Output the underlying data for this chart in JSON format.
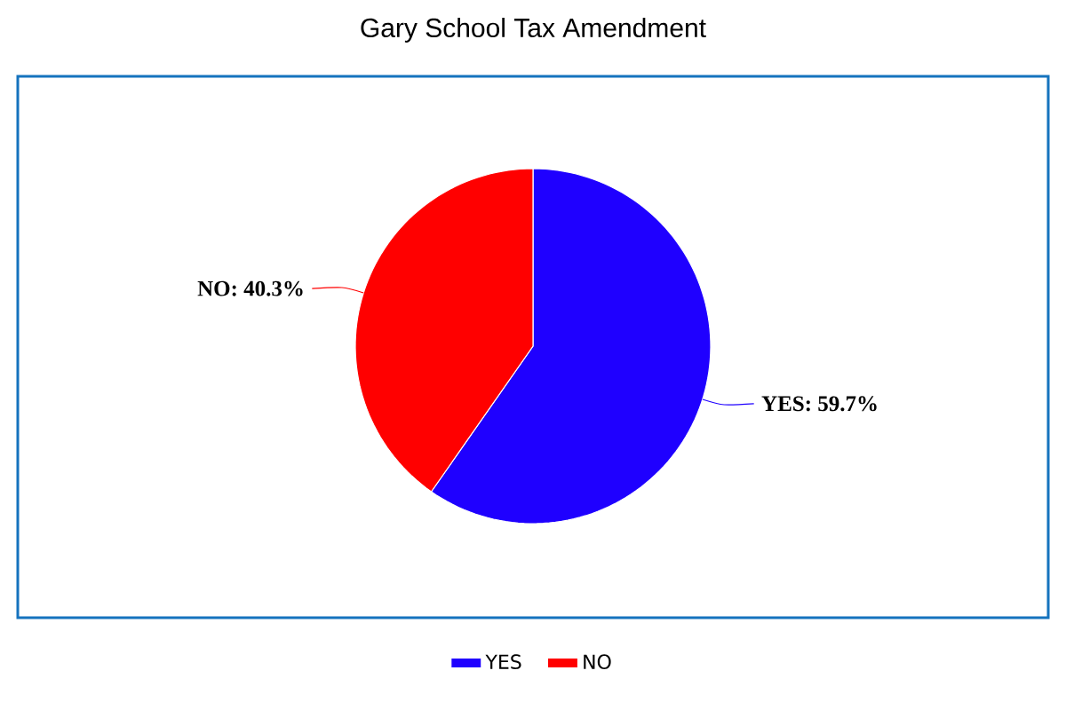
{
  "chart_data": {
    "type": "pie",
    "title": "Gary School Tax Amendment",
    "categories": [
      "YES",
      "NO"
    ],
    "values": [
      59.7,
      40.3
    ],
    "colors": [
      "#1f00ff",
      "#ff0000"
    ],
    "value_labels": [
      "YES: 59.7%",
      "NO: 40.3%"
    ],
    "legend": "bottom"
  }
}
